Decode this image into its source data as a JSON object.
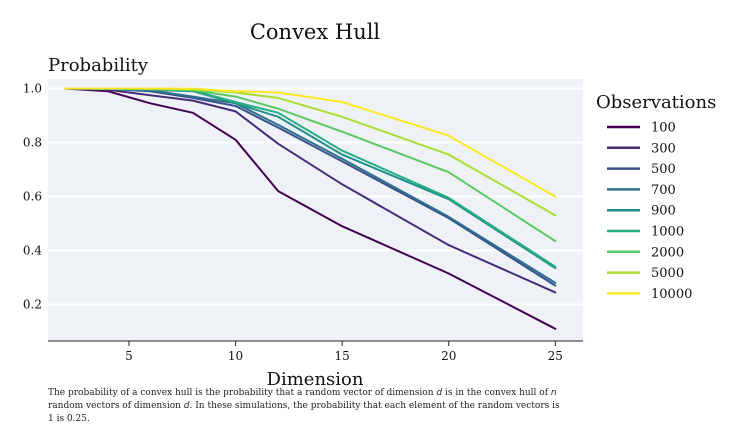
{
  "chart_data": {
    "type": "line",
    "title": "Convex Hull",
    "xlabel": "Dimension",
    "ylabel": "Probability",
    "legend_title": "Observations",
    "legend_position": "right",
    "grid": "horizontal",
    "xlim": [
      1.2,
      26.3
    ],
    "ylim": [
      0.065,
      1.035
    ],
    "xticks": [
      5,
      10,
      15,
      20,
      25
    ],
    "yticks": [
      0.2,
      0.4,
      0.6,
      0.8,
      1.0
    ],
    "ytick_labels": [
      "0.2",
      "0.4",
      "0.6",
      "0.8",
      "1.0"
    ],
    "x": [
      2,
      4,
      6,
      8,
      10,
      12,
      15,
      20,
      25
    ],
    "series": [
      {
        "name": "100",
        "color": "#440154",
        "values": [
          1.0,
          0.99,
          0.945,
          0.91,
          0.81,
          0.62,
          0.49,
          0.315,
          0.11
        ]
      },
      {
        "name": "300",
        "color": "#472c7a",
        "values": [
          1.0,
          0.995,
          0.975,
          0.955,
          0.915,
          0.795,
          0.645,
          0.42,
          0.245
        ]
      },
      {
        "name": "500",
        "color": "#3b518b",
        "values": [
          1.0,
          0.998,
          0.99,
          0.965,
          0.935,
          0.855,
          0.73,
          0.52,
          0.27
        ]
      },
      {
        "name": "700",
        "color": "#2c718e",
        "values": [
          1.0,
          0.998,
          0.993,
          0.97,
          0.945,
          0.865,
          0.74,
          0.525,
          0.28
        ]
      },
      {
        "name": "900",
        "color": "#21908d",
        "values": [
          1.0,
          0.999,
          0.995,
          0.99,
          0.945,
          0.895,
          0.755,
          0.59,
          0.335
        ]
      },
      {
        "name": "1000",
        "color": "#27ad81",
        "values": [
          1.0,
          0.999,
          0.997,
          0.992,
          0.95,
          0.91,
          0.77,
          0.595,
          0.34
        ]
      },
      {
        "name": "2000",
        "color": "#5cc863",
        "values": [
          1.0,
          0.999,
          0.998,
          0.994,
          0.97,
          0.925,
          0.84,
          0.69,
          0.435
        ]
      },
      {
        "name": "5000",
        "color": "#aadc32",
        "values": [
          1.0,
          1.0,
          0.999,
          0.997,
          0.985,
          0.965,
          0.895,
          0.755,
          0.53
        ]
      },
      {
        "name": "10000",
        "color": "#fde725",
        "values": [
          1.0,
          1.0,
          1.0,
          0.999,
          0.99,
          0.985,
          0.95,
          0.825,
          0.6
        ]
      }
    ]
  },
  "caption": {
    "p1": "The probability of a convex hull is the probability that a random vector of dimension ",
    "v1": "d",
    "p2": " is in the convex hull of ",
    "v2": "n",
    "p3": " random vectors of dimension ",
    "v3": "d",
    "p4": ". In these simulations, the probability that each element of the random vectors is 1 is 0.25."
  }
}
